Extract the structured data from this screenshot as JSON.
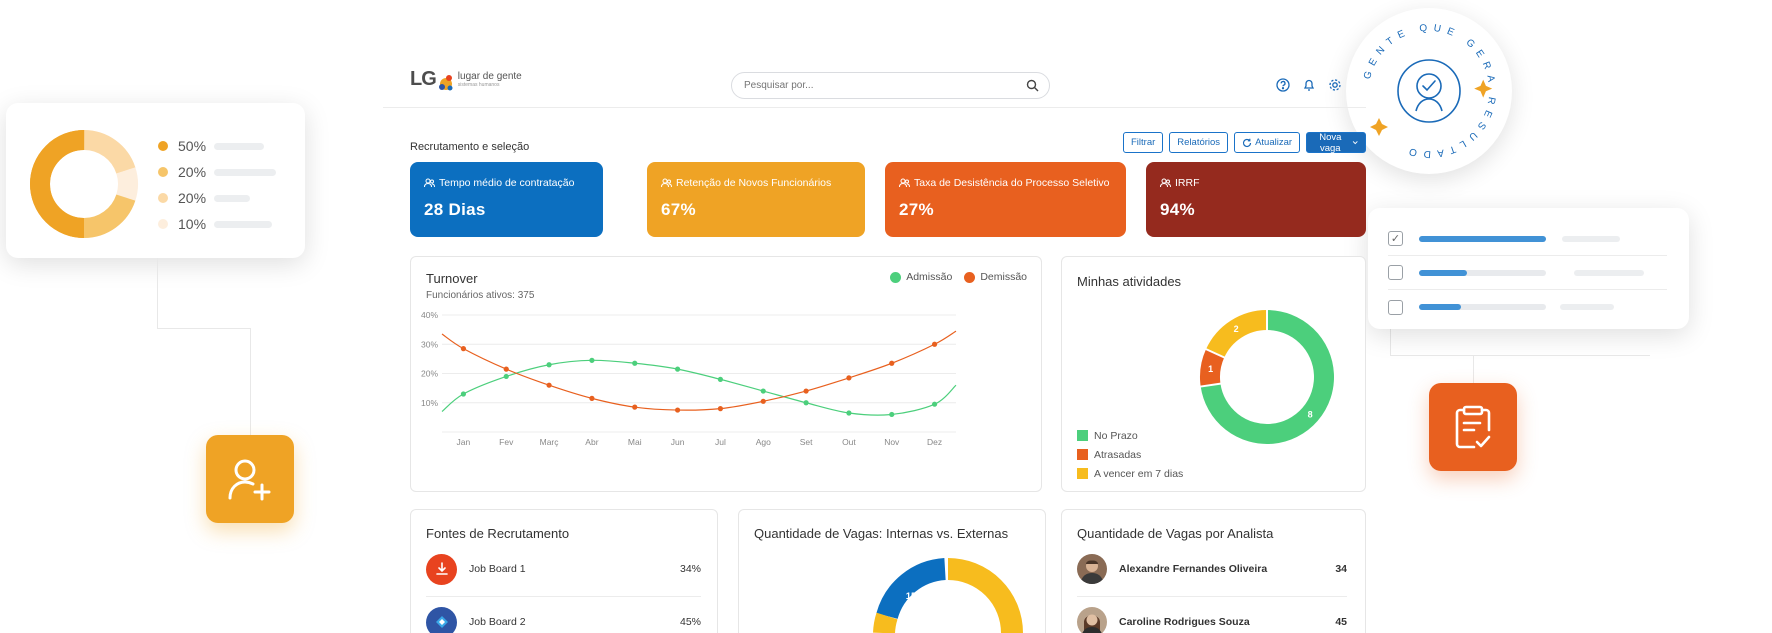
{
  "decor": {
    "donut_legend": [
      {
        "label": "50%",
        "color": "#efa325"
      },
      {
        "label": "20%",
        "color": "#f6c56a"
      },
      {
        "label": "20%",
        "color": "#fbd9a6"
      },
      {
        "label": "10%",
        "color": "#fdeedd"
      }
    ],
    "badge_text": "GENTE QUE GERA RESULTADO",
    "checklist": [
      {
        "checked": true,
        "progress": 1.0
      },
      {
        "checked": false,
        "progress": 0.38
      },
      {
        "checked": false,
        "progress": 0.33
      }
    ]
  },
  "header": {
    "logo_main": "LG",
    "logo_name": "lugar de gente",
    "logo_sub": "sistemas humanos",
    "search_placeholder": "Pesquisar por...",
    "icons": [
      "help-icon",
      "bell-icon",
      "gear-icon"
    ]
  },
  "page": {
    "section_title": "Recrutamento e seleção",
    "actions": {
      "filter": "Filtrar",
      "reports": "Relatórios",
      "refresh": "Atualizar",
      "new_job": "Nova vaga"
    }
  },
  "kpis": [
    {
      "label": "Tempo médio de contratação",
      "value": "28 Dias",
      "color": "#0c6fc0"
    },
    {
      "label": "Retenção de Novos Funcionários",
      "value": "67%",
      "color": "#efa325"
    },
    {
      "label": "Taxa de Desistência do Processo Seletivo",
      "value": "27%",
      "color": "#e8601f"
    },
    {
      "label": "IRRF",
      "value": "94%",
      "color": "#952a1e"
    }
  ],
  "turnover": {
    "title": "Turnover",
    "subtitle": "Funcionários ativos: 375",
    "legend": [
      {
        "name": "Admissão",
        "color": "#4ccf7c"
      },
      {
        "name": "Demissão",
        "color": "#e8601f"
      }
    ]
  },
  "chart_data": {
    "type": "line",
    "categories": [
      "Jan",
      "Fev",
      "Març",
      "Abr",
      "Mai",
      "Jun",
      "Jul",
      "Ago",
      "Set",
      "Out",
      "Nov",
      "Dez"
    ],
    "y_ticks": [
      "40%",
      "30%",
      "20%",
      "10%"
    ],
    "ylim": [
      0,
      40
    ],
    "grid": true,
    "legend_position": "top-right",
    "series": [
      {
        "name": "Admissão",
        "color": "#4ccf7c",
        "values": [
          13,
          19,
          23,
          24.5,
          23.5,
          21.5,
          18,
          14,
          10,
          6.5,
          6,
          9.5
        ],
        "start": 7,
        "end": 16
      },
      {
        "name": "Demissão",
        "color": "#e8601f",
        "values": [
          28.5,
          21.5,
          16,
          11.5,
          8.5,
          7.5,
          8,
          10.5,
          14,
          18.5,
          23.5,
          30
        ],
        "start": 33.5,
        "end": 34.5
      }
    ]
  },
  "activities": {
    "title": "Minhas atividades",
    "legend": [
      {
        "label": "No Prazo",
        "color": "#4ccf7c",
        "value": 8
      },
      {
        "label": "Atrasadas",
        "color": "#e8601f",
        "value": 1
      },
      {
        "label": "A vencer em 7 dias",
        "color": "#f7bc1e",
        "value": 2
      }
    ],
    "slice_labels": [
      "8",
      "1",
      "2"
    ]
  },
  "sources": {
    "title": "Fontes de Recrutamento",
    "items": [
      {
        "name": "Job Board 1",
        "pct": "34%",
        "color": "#e8431f"
      },
      {
        "name": "Job Board 2",
        "pct": "45%",
        "color": "#2f55a5"
      }
    ]
  },
  "internal_external": {
    "title": "Quantidade de Vagas: Internas vs. Externas",
    "label_blue": "15"
  },
  "analysts": {
    "title": "Quantidade de Vagas por Analista",
    "items": [
      {
        "name": "Alexandre Fernandes Oliveira",
        "value": "34"
      },
      {
        "name": "Caroline Rodrigues Souza",
        "value": "45"
      }
    ]
  }
}
